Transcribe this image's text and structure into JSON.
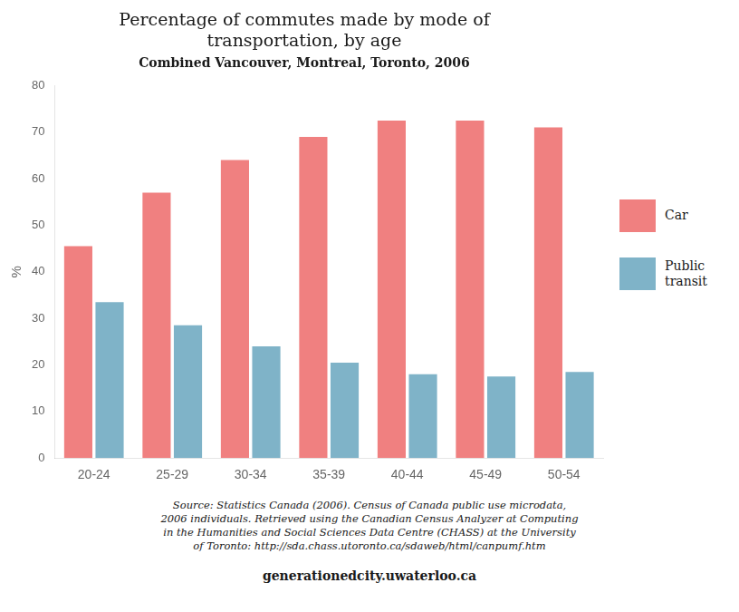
{
  "chart_data": {
    "type": "bar",
    "title": "Percentage of commutes made by mode of\ntransportation, by age",
    "subtitle": "Combined Vancouver, Montreal, Toronto, 2006",
    "categories": [
      "20-24",
      "25-29",
      "30-34",
      "35-39",
      "40-44",
      "45-49",
      "50-54"
    ],
    "series": [
      {
        "name": "Car",
        "color": "#F08080",
        "values": [
          45.5,
          57.0,
          64.0,
          69.0,
          72.5,
          72.5,
          71.0
        ]
      },
      {
        "name": "Public\ntransit",
        "color": "#7FB3C8",
        "values": [
          33.5,
          28.5,
          24.0,
          20.5,
          18.0,
          17.5,
          18.5
        ]
      }
    ],
    "ylabel": "%",
    "ylim": [
      0,
      80
    ],
    "yticks": [
      0,
      10,
      20,
      30,
      40,
      50,
      60,
      70,
      80
    ],
    "grid": false,
    "legend": "right",
    "annotations": [
      "Source: Statistics Canada (2006). Census of Canada public use microdata,\n2006 individuals. Retrieved using the Canadian Census Analyzer at Computing\nin the Humanities and Social Sciences Data Centre (CHASS) at the University\nof Toronto: http://sda.chass.utoronto.ca/sdaweb/html/canpumf.htm",
      "generationedcity.uwaterloo.ca"
    ]
  }
}
